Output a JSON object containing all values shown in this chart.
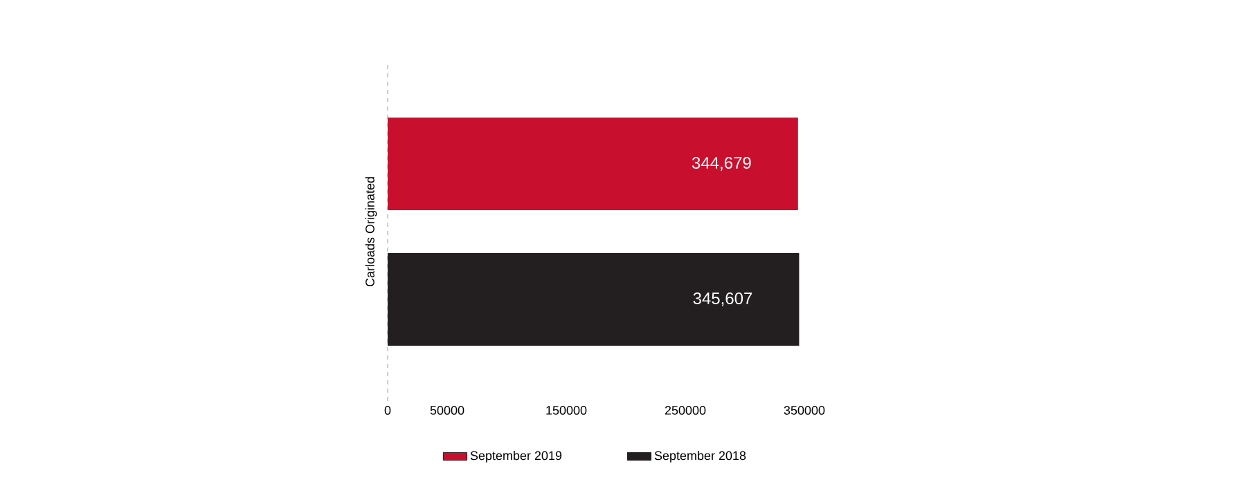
{
  "chart_data": {
    "type": "bar",
    "orientation": "horizontal",
    "categories": [
      "Carloads Originated"
    ],
    "series": [
      {
        "name": "September 2019",
        "color": "#c8102e",
        "values": [
          344679
        ],
        "value_labels": [
          "344,679"
        ]
      },
      {
        "name": "September 2018",
        "color": "#231f20",
        "values": [
          345607
        ],
        "value_labels": [
          "345,607"
        ]
      }
    ],
    "xlim": [
      0,
      350000
    ],
    "xticks": [
      0,
      50000,
      150000,
      250000,
      350000
    ],
    "legend": "bottom"
  }
}
